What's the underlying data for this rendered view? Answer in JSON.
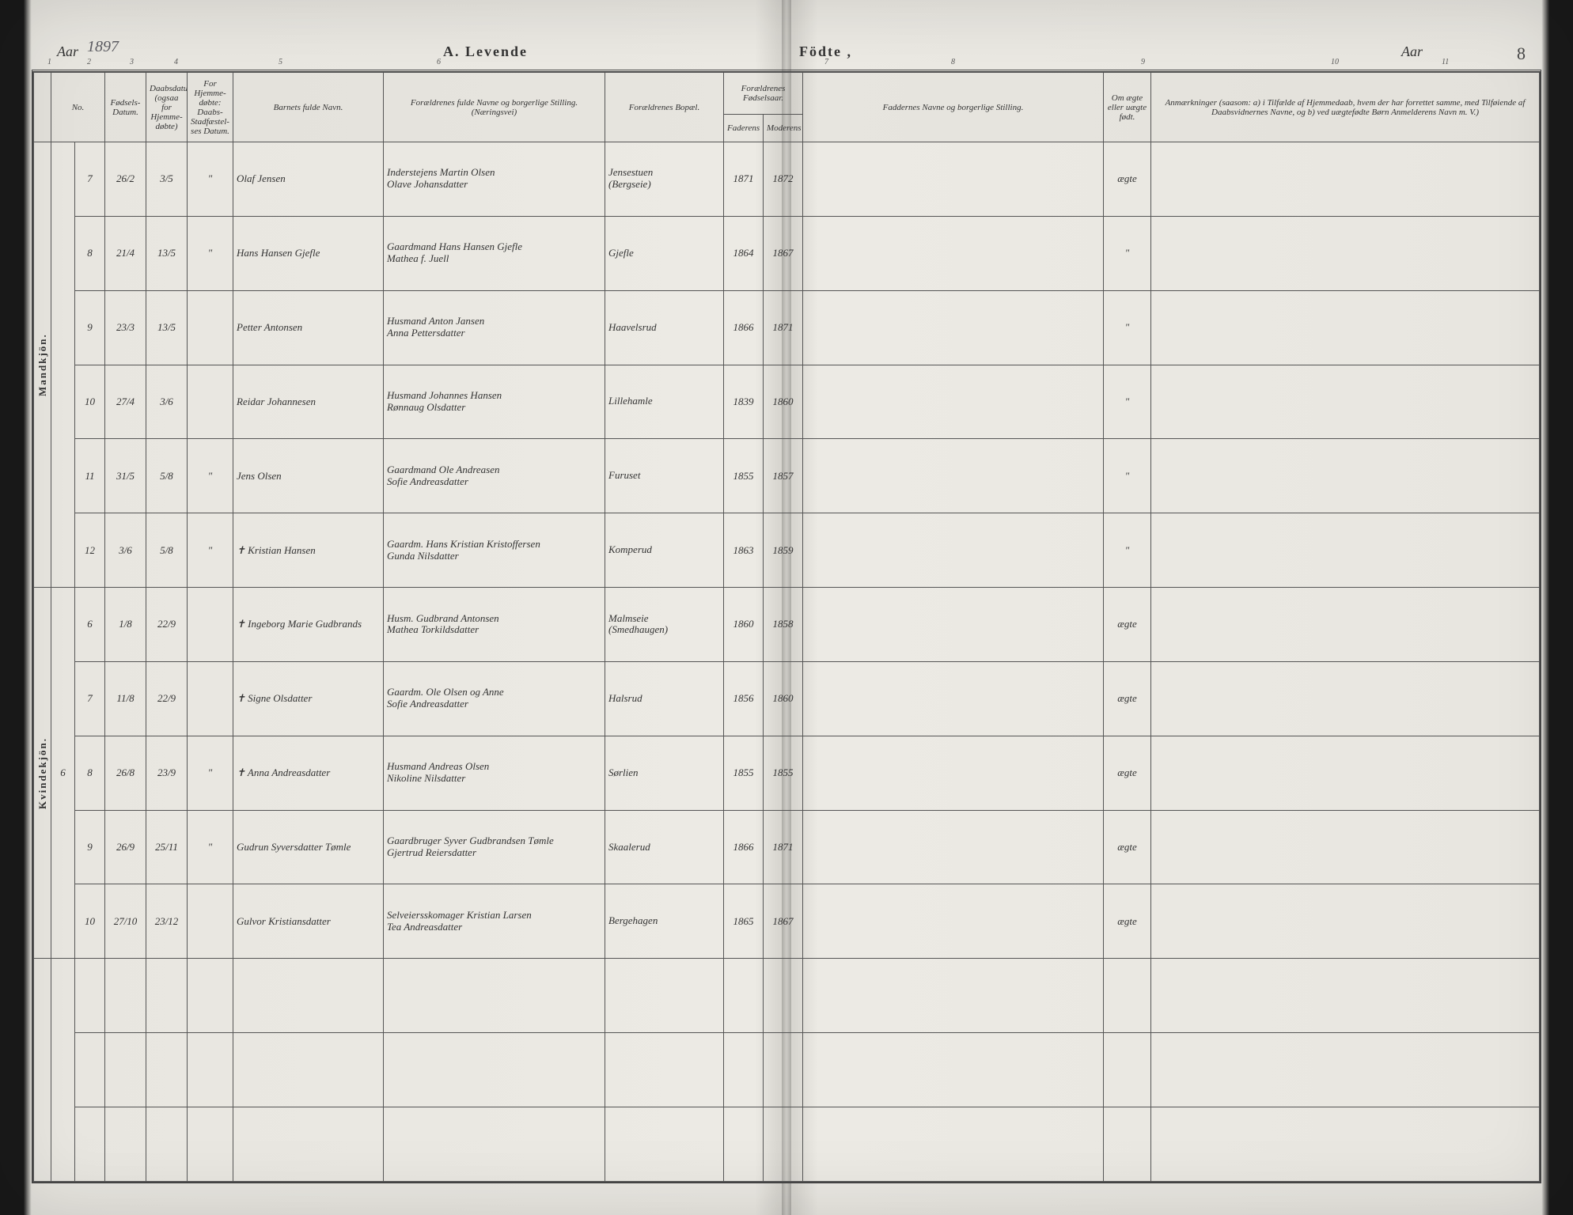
{
  "meta": {
    "year_label": "Aar",
    "year_value": "1897",
    "title_left": "A.  Levende",
    "title_right": "Födte ,",
    "aar_right": "Aar",
    "page_number": "8"
  },
  "col_numbers": [
    "1",
    "2",
    "3",
    "4",
    "5",
    "6",
    "7",
    "8",
    "9",
    "10",
    "11"
  ],
  "headers": {
    "c1": "No.",
    "c2": "Fødsels-\nDatum.",
    "c3": "Daabsdatum (ogsaa for Hjemme-døbte)",
    "c4": "For Hjemme-døbte: Daabs-Stadfæstel-ses Datum.",
    "c5": "Barnets fulde Navn.",
    "c6": "Forældrenes fulde Navne og borgerlige Stilling.\n(Næringsvei)",
    "c7": "Forældrenes Bopæl.",
    "c8": "Forældrenes Fødselsaar.",
    "c8a": "Faderens",
    "c8b": "Moderens",
    "c9": "Faddernes Navne og borgerlige Stilling.",
    "c10": "Om ægte eller uægte født.",
    "c11": "Anmærkninger (saasom: a) i Tilfælde af Hjemmedaab, hvem der har forrettet samme, med Tilføiende af Daabsvidnernes Navne, og b) ved uægtefødte Børn Anmelderens Navn m. V.)"
  },
  "sections": {
    "male": "Mandkjön.",
    "female": "Kvindekjön."
  },
  "rows_male": [
    {
      "n": "7",
      "birth": "26/2",
      "bapt": "3/5",
      "conf": "\"",
      "child": "Olaf Jensen",
      "parents": "Inderstejens Martin Olsen\nOlave Johansdatter",
      "abode": "Jensestuen\n(Bergseie)",
      "fy": "1871",
      "my": "1872",
      "legit": "ægte"
    },
    {
      "n": "8",
      "birth": "21/4",
      "bapt": "13/5",
      "conf": "\"",
      "child": "Hans Hansen Gjefle",
      "parents": "Gaardmand Hans Hansen Gjefle\nMathea f. Juell",
      "abode": "Gjefle",
      "fy": "1864",
      "my": "1867",
      "legit": "\""
    },
    {
      "n": "9",
      "birth": "23/3",
      "bapt": "13/5",
      "conf": "",
      "child": "Petter Antonsen",
      "parents": "Husmand Anton Jansen\nAnna Pettersdatter",
      "abode": "Haavelsrud",
      "fy": "1866",
      "my": "1871",
      "legit": "\""
    },
    {
      "n": "10",
      "birth": "27/4",
      "bapt": "3/6",
      "conf": "",
      "child": "Reidar Johannesen",
      "parents": "Husmand Johannes Hansen\nRønnaug Olsdatter",
      "abode": "Lillehamle",
      "fy": "1839",
      "my": "1860",
      "legit": "\""
    },
    {
      "n": "11",
      "birth": "31/5",
      "bapt": "5/8",
      "conf": "\"",
      "child": "Jens Olsen",
      "parents": "Gaardmand Ole Andreasen\nSofie Andreasdatter",
      "abode": "Furuset",
      "fy": "1855",
      "my": "1857",
      "legit": "\""
    },
    {
      "n": "12",
      "birth": "3/6",
      "bapt": "5/8",
      "conf": "\"",
      "child": "✝ Kristian Hansen",
      "parents": "Gaardm. Hans Kristian Kristoffersen\nGunda Nilsdatter",
      "abode": "Komperud",
      "fy": "1863",
      "my": "1859",
      "legit": "\""
    }
  ],
  "left_margin_female": "6",
  "rows_female": [
    {
      "n": "6",
      "birth": "1/8",
      "bapt": "22/9",
      "conf": "",
      "child": "✝ Ingeborg Marie Gudbrands",
      "parents": "Husm. Gudbrand Antonsen\nMathea Torkildsdatter",
      "abode": "Malmseie\n(Smedhaugen)",
      "fy": "1860",
      "my": "1858",
      "legit": "ægte"
    },
    {
      "n": "7",
      "birth": "11/8",
      "bapt": "22/9",
      "conf": "",
      "child": "✝ Signe Olsdatter",
      "parents": "Gaardm. Ole Olsen og Anne\nSofie Andreasdatter",
      "abode": "Halsrud",
      "fy": "1856",
      "my": "1860",
      "legit": "ægte"
    },
    {
      "n": "8",
      "birth": "26/8",
      "bapt": "23/9",
      "conf": "\"",
      "child": "✝ Anna Andreasdatter",
      "parents": "Husmand Andreas Olsen\nNikoline Nilsdatter",
      "abode": "Sørlien",
      "fy": "1855",
      "my": "1855",
      "legit": "ægte"
    },
    {
      "n": "9",
      "birth": "26/9",
      "bapt": "25/11",
      "conf": "\"",
      "child": "Gudrun Syversdatter Tømle",
      "parents": "Gaardbruger Syver Gudbrandsen Tømle\nGjertrud Reiersdatter",
      "abode": "Skaalerud",
      "fy": "1866",
      "my": "1871",
      "legit": "ægte"
    },
    {
      "n": "10",
      "birth": "27/10",
      "bapt": "23/12",
      "conf": "",
      "child": "Gulvor Kristiansdatter",
      "parents": "Selveiersskomager Kristian Larsen\nTea Andreasdatter",
      "abode": "Bergehagen",
      "fy": "1865",
      "my": "1867",
      "legit": "ægte"
    }
  ],
  "styling": {
    "page_bg": "#eceae4",
    "ink": "#555",
    "rule": "#444",
    "hand_font": "cursive",
    "print_font": "serif"
  }
}
